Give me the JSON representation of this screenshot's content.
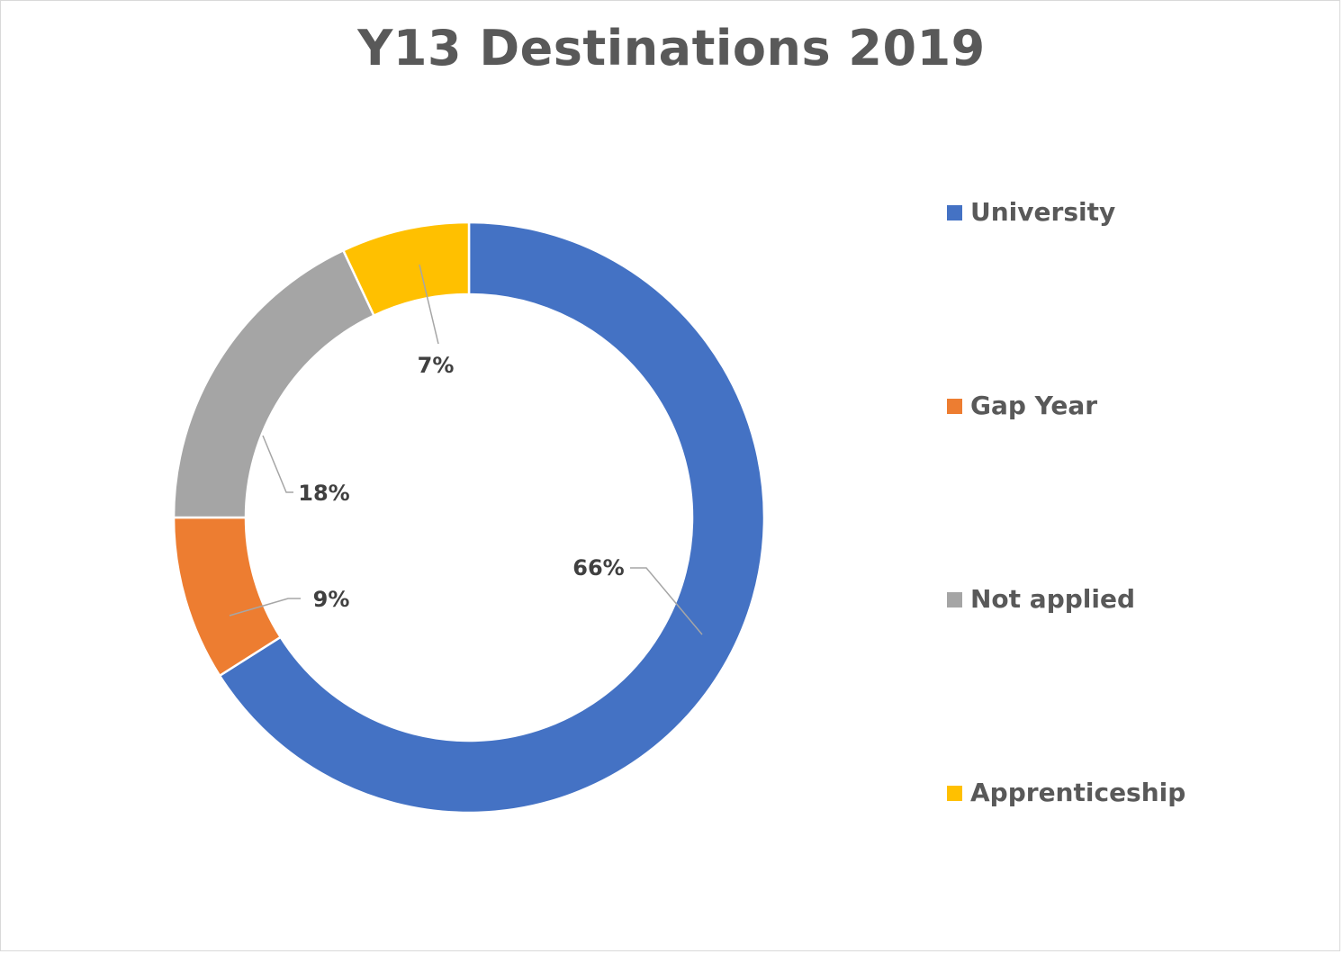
{
  "chart_data": {
    "type": "pie",
    "variant": "doughnut",
    "title": "Y13 Destinations 2019",
    "categories": [
      "University",
      "Gap Year",
      "Not applied",
      "Apprenticeship"
    ],
    "values": [
      66,
      9,
      18,
      7
    ],
    "data_labels": [
      "66%",
      "9%",
      "18%",
      "7%"
    ],
    "colors": [
      "#4472C4",
      "#ED7D31",
      "#A5A5A5",
      "#FFC000"
    ],
    "legend_position": "right",
    "start_angle": "12 o'clock",
    "direction": "clockwise"
  }
}
